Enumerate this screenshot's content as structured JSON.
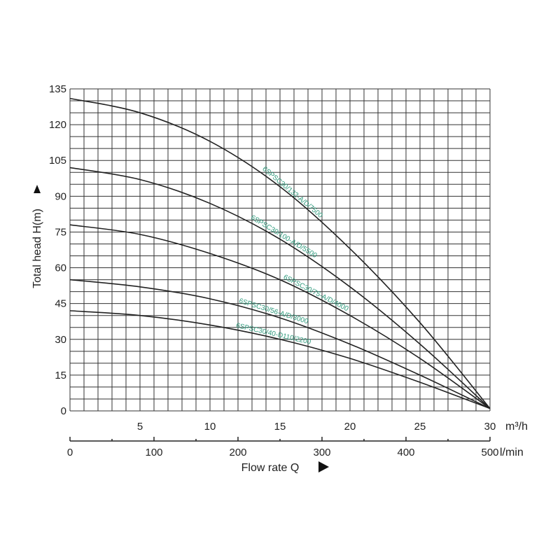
{
  "chart_data": {
    "type": "line",
    "ylabel": "Total head H(m)",
    "xlabel": "Flow rate Q",
    "x_unit_top": "m³/h",
    "x_unit_bottom": "l/min",
    "xlim": [
      0,
      30
    ],
    "ylim": [
      0,
      135
    ],
    "grid": true,
    "y_ticks": [
      0,
      15,
      30,
      45,
      60,
      75,
      90,
      105,
      120,
      135
    ],
    "x_ticks_m3h": [
      5,
      10,
      15,
      20,
      25,
      30
    ],
    "x_ticks_lmin": [
      0,
      100,
      200,
      300,
      400,
      500
    ],
    "series": [
      {
        "name": "6SPSC30/132-A/D/7500",
        "x": [
          0,
          5,
          10,
          15,
          20,
          25,
          30
        ],
        "y": [
          131,
          125,
          113,
          94,
          68,
          37,
          1
        ]
      },
      {
        "name": "6SPSC30/100-A/D/5500",
        "x": [
          0,
          5,
          10,
          15,
          20,
          25,
          30
        ],
        "y": [
          102,
          97,
          87,
          72,
          52,
          28,
          1
        ]
      },
      {
        "name": "6SPSC30/75-A/D/4000",
        "x": [
          0,
          5,
          10,
          15,
          20,
          25,
          30
        ],
        "y": [
          78,
          74,
          66,
          55,
          40,
          22,
          1
        ]
      },
      {
        "name": "6SPSC30/56-A/D/3000",
        "x": [
          0,
          5,
          10,
          15,
          20,
          25,
          30
        ],
        "y": [
          55,
          52,
          47,
          39,
          28,
          15,
          1
        ]
      },
      {
        "name": "6SPSC30/40-D110/2200",
        "x": [
          0,
          5,
          10,
          15,
          20,
          25,
          30
        ],
        "y": [
          42,
          40,
          36,
          30,
          22,
          12,
          1
        ]
      }
    ]
  }
}
